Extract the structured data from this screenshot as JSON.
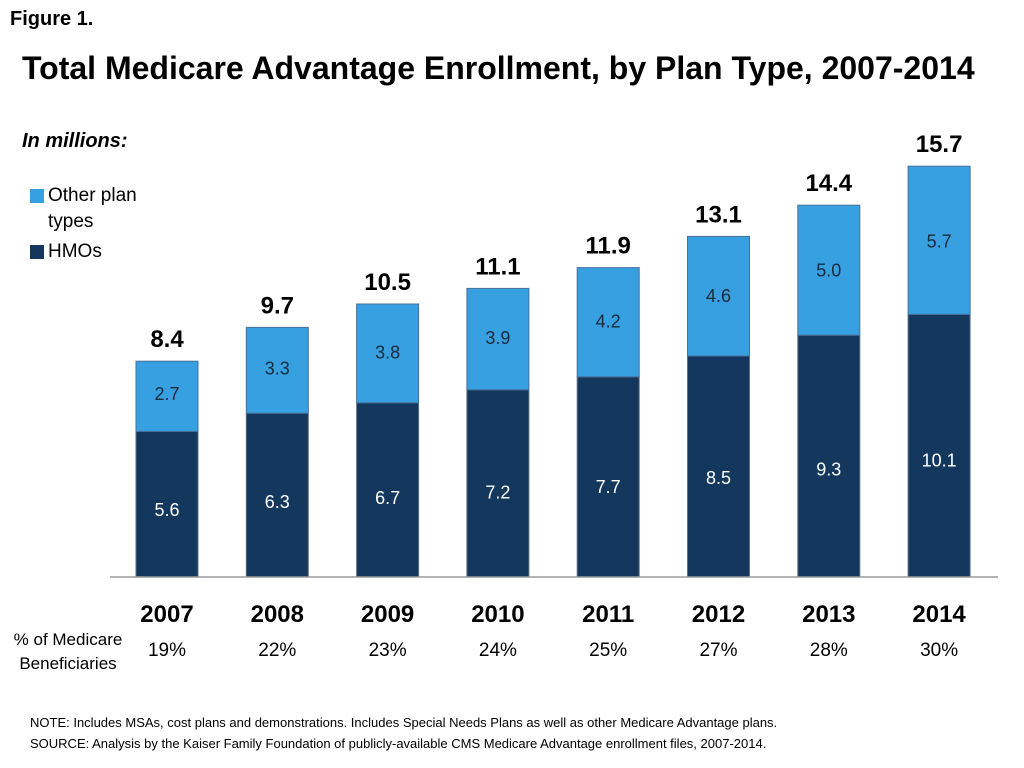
{
  "figure_label": "Figure 1.",
  "chart_data": {
    "type": "bar",
    "stacked": true,
    "title": "Total Medicare Advantage Enrollment, by Plan Type, 2007-2014",
    "subtitle": "In millions:",
    "categories": [
      "2007",
      "2008",
      "2009",
      "2010",
      "2011",
      "2012",
      "2013",
      "2014"
    ],
    "series": [
      {
        "name": "HMOs",
        "color": "#14375e",
        "values": [
          5.6,
          6.3,
          6.7,
          7.2,
          7.7,
          8.5,
          9.3,
          10.1
        ]
      },
      {
        "name": "Other plan types",
        "color": "#36a0e0",
        "values": [
          2.7,
          3.3,
          3.8,
          3.9,
          4.2,
          4.6,
          5.0,
          5.7
        ]
      }
    ],
    "totals": [
      "8.4",
      "9.7",
      "10.5",
      "11.1",
      "11.9",
      "13.1",
      "14.4",
      "15.7"
    ],
    "segment_labels": {
      "HMOs": [
        "5.6",
        "6.3",
        "6.7",
        "7.2",
        "7.7",
        "8.5",
        "9.3",
        "10.1"
      ],
      "Other plan types": [
        "2.7",
        "3.3",
        "3.8",
        "3.9",
        "4.2",
        "4.6",
        "5.0",
        "5.7"
      ]
    },
    "ylim": [
      0,
      15.7
    ],
    "legend_position": "top-left",
    "grid": false
  },
  "legend": [
    {
      "label": "Other plan types",
      "color": "#36a0e0"
    },
    {
      "label": "HMOs",
      "color": "#14375e"
    }
  ],
  "percent_row": {
    "header": "% of Medicare Beneficiaries",
    "values": [
      "19%",
      "22%",
      "23%",
      "24%",
      "25%",
      "27%",
      "28%",
      "30%"
    ]
  },
  "notes": {
    "note": "NOTE:  Includes MSAs, cost plans and demonstrations.  Includes Special Needs Plans as well as other Medicare Advantage plans.",
    "source": "SOURCE:  Analysis by the Kaiser Family Foundation of publicly-available CMS Medicare Advantage enrollment files, 2007-2014."
  }
}
